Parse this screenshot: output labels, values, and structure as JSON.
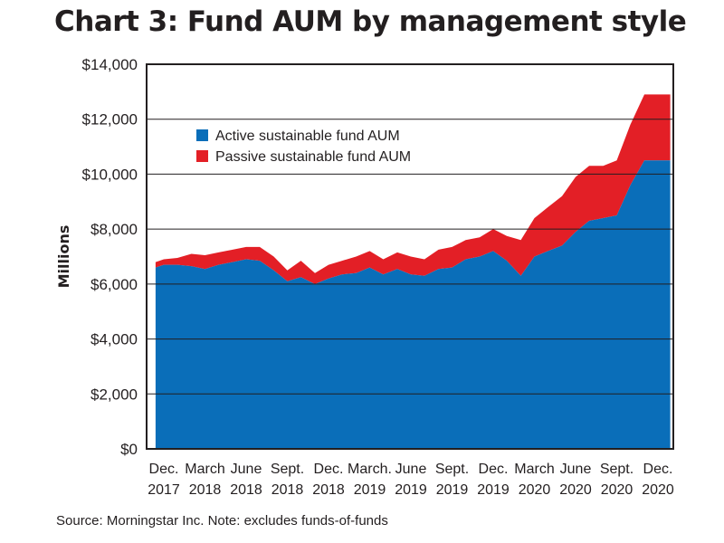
{
  "title": "Chart 3: Fund AUM by management style",
  "source": "Source: Morningstar Inc. Note: excludes funds-of-funds",
  "colors": {
    "active": "#0a6eb9",
    "passive": "#e31f26",
    "grid": "#231f20"
  },
  "chart_data": {
    "type": "area",
    "stacked": true,
    "ylabel": "Millions",
    "ylim": [
      0,
      14000
    ],
    "yticks": [
      "$0",
      "$2,000",
      "$4,000",
      "$6,000",
      "$8,000",
      "$10,000",
      "$12,000",
      "$14,000"
    ],
    "ytick_values": [
      0,
      2000,
      4000,
      6000,
      8000,
      10000,
      12000,
      14000
    ],
    "x_tick_labels": [
      [
        "Dec.",
        "2017"
      ],
      [
        "March",
        "2018"
      ],
      [
        "June",
        "2018"
      ],
      [
        "Sept.",
        "2018"
      ],
      [
        "Dec.",
        "2018"
      ],
      [
        "March.",
        "2019"
      ],
      [
        "June",
        "2019"
      ],
      [
        "Sept.",
        "2019"
      ],
      [
        "Dec.",
        "2019"
      ],
      [
        "March",
        "2020"
      ],
      [
        "June",
        "2020"
      ],
      [
        "Sept.",
        "2020"
      ],
      [
        "Dec.",
        "2020"
      ]
    ],
    "x_start": -0.2,
    "x_end": 12.3,
    "x": [
      -0.2,
      0,
      0.33,
      0.67,
      1,
      1.33,
      1.67,
      2,
      2.33,
      2.67,
      3,
      3.33,
      3.67,
      4,
      4.33,
      4.67,
      5,
      5.33,
      5.67,
      6,
      6.33,
      6.67,
      7,
      7.33,
      7.67,
      8,
      8.33,
      8.67,
      9,
      9.33,
      9.67,
      10,
      10.33,
      10.67,
      11,
      11.33,
      11.67,
      12,
      12.3
    ],
    "legend": [
      "Active sustainable fund AUM",
      "Passive sustainable fund AUM"
    ],
    "series": [
      {
        "name": "Active sustainable fund AUM",
        "values": [
          6600,
          6700,
          6700,
          6650,
          6550,
          6700,
          6800,
          6900,
          6850,
          6500,
          6100,
          6250,
          6000,
          6200,
          6350,
          6400,
          6600,
          6350,
          6550,
          6350,
          6300,
          6550,
          6600,
          6900,
          7000,
          7200,
          6850,
          6300,
          7000,
          7200,
          7400,
          7900,
          8300,
          8400,
          8500,
          9600,
          10500,
          10500,
          10500
        ]
      },
      {
        "name": "Passive sustainable fund AUM",
        "values": [
          200,
          200,
          250,
          450,
          500,
          450,
          450,
          450,
          500,
          500,
          400,
          600,
          400,
          500,
          500,
          600,
          600,
          550,
          600,
          650,
          600,
          700,
          750,
          700,
          700,
          800,
          900,
          1300,
          1400,
          1600,
          1800,
          2000,
          2000,
          1900,
          2000,
          2200,
          2400,
          2400,
          2400
        ]
      }
    ]
  }
}
